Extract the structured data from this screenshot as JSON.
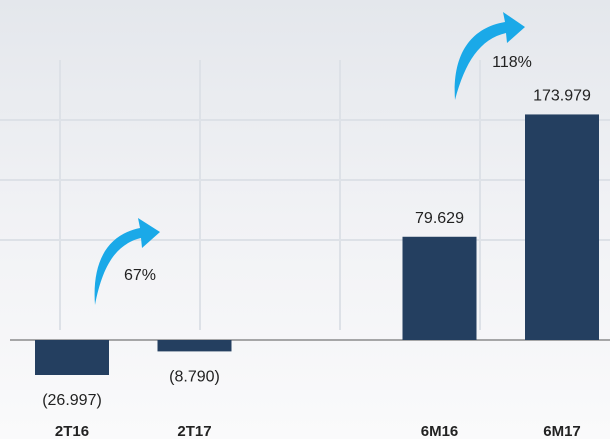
{
  "chart_data": {
    "type": "bar",
    "categories": [
      "2T16",
      "2T17",
      null,
      "6M16",
      "6M17"
    ],
    "values": [
      -26997,
      -8790,
      null,
      79629,
      173979
    ],
    "value_labels": [
      "(26.997)",
      "(8.790)",
      null,
      "79.629",
      "173.979"
    ],
    "color": "#243f60",
    "annotations": [
      "67%",
      "118%"
    ]
  }
}
